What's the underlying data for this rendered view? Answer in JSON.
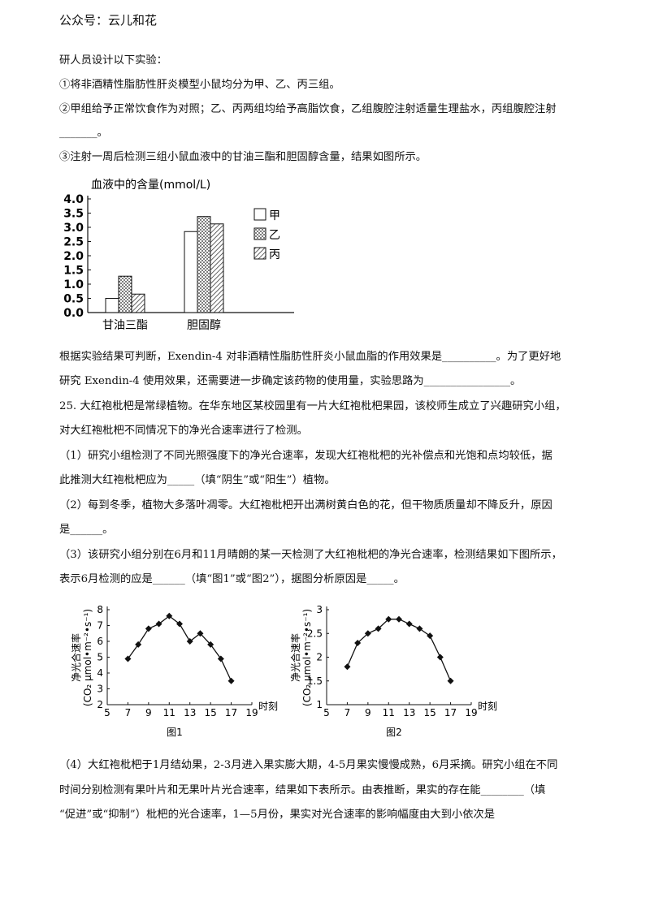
{
  "header": {
    "label": "公众号：云儿和花"
  },
  "lines": [
    "研人员设计以下实验：",
    "①将非酒精性脂肪性肝炎模型小鼠均分为甲、乙、丙三组。",
    "②甲组给予正常饮食作为对照；乙、丙两组均给予高脂饮食，乙组腹腔注射适量生理盐水，丙组腹腔注射",
    "_______。",
    "③注射一周后检测三组小鼠血液中的甘油三酯和胆固醇含量，结果如图所示。",
    "根据实验结果可判断，Exendin-4  对非酒精性脂肪性肝炎小鼠血脂的作用效果是__________。为了更好地",
    "研究  Exendin-4  使用效果，还需要进一步确定该药物的使用量，实验思路为________________。",
    "25. 大红袍枇杷是常绿植物。在华东地区某校园里有一片大红袍枇杷果园，该校师生成立了兴趣研究小组，",
    "对大红袍枇杷不同情况下的净光合速率进行了检测。",
    "（1）研究小组检测了不同光照强度下的净光合速率，发现大红袍枇杷的光补偿点和光饱和点均较低，据",
    "此推测大红袍枇杷应为_____（填“阴生”或“阳生”）植物。",
    "（2）每到冬季，植物大多落叶凋零。大红袍枇杷开出满树黄白色的花，但干物质质量却不降反升，原因",
    "是______。",
    "（3）该研究小组分别在6月和11月晴朗的某一天检测了大红袍枇杷的净光合速率，检测结果如下图所示，",
    "表示6月检测的应是______（填“图1”或“图2”），据图分析原因是_____。",
    "（4）大红袍枇杷于1月结幼果，2-3月进入果实膨大期，4-5月果实慢慢成熟，6月采摘。研究小组在不同",
    "时间分别检测有果叶片和无果叶片光合速率，结果如下表所示。由表推断，果实的存在能________（填",
    "“促进”或“抑制”）枇杷的光合速率，1—5月份，果实对光合速率的影响幅度由大到小依次是"
  ],
  "chart_data": [
    {
      "type": "bar",
      "ylabel": "血液中的含量(mmol/L)",
      "categories": [
        "甘油三酯",
        "胆固醇"
      ],
      "series": [
        {
          "name": "甲",
          "values": [
            0.5,
            2.85
          ]
        },
        {
          "name": "乙",
          "values": [
            1.28,
            3.38
          ]
        },
        {
          "name": "丙",
          "values": [
            0.65,
            3.12
          ]
        }
      ],
      "ylim": [
        0,
        4.0
      ],
      "yticks": [
        "0.0",
        "0.5",
        "1.0",
        "1.5",
        "2.0",
        "2.5",
        "3.0",
        "3.5",
        "4.0"
      ],
      "legend": "right",
      "grid": false
    },
    {
      "type": "line",
      "title": "图1",
      "ylabel": "净光合速率",
      "yunit": "(CO₂ μmol•m⁻²•s⁻¹)",
      "xlabel": "时刻",
      "x": [
        7,
        8,
        9,
        10,
        11,
        12,
        13,
        14,
        15,
        16,
        17
      ],
      "y": [
        4.9,
        5.8,
        6.8,
        7.1,
        7.6,
        7.1,
        6.0,
        6.5,
        5.8,
        4.9,
        3.5
      ],
      "xlim": [
        5,
        19
      ],
      "ylim": [
        2,
        8
      ],
      "xticks": [
        "5",
        "7",
        "9",
        "11",
        "13",
        "15",
        "17",
        "19"
      ],
      "yticks": [
        "2",
        "3",
        "4",
        "5",
        "6",
        "7",
        "8"
      ],
      "marker": "diamond"
    },
    {
      "type": "line",
      "title": "图2",
      "ylabel": "净光合速率",
      "yunit": "(CO₂ μmol•m⁻²•s⁻¹)",
      "xlabel": "时刻",
      "x": [
        7,
        8,
        9,
        10,
        11,
        12,
        13,
        14,
        15,
        16,
        17
      ],
      "y": [
        1.8,
        2.3,
        2.5,
        2.6,
        2.8,
        2.8,
        2.7,
        2.6,
        2.45,
        2.0,
        1.5
      ],
      "xlim": [
        5,
        19
      ],
      "ylim": [
        1,
        3
      ],
      "xticks": [
        "5",
        "7",
        "9",
        "11",
        "13",
        "15",
        "17",
        "19"
      ],
      "yticks": [
        "1",
        "1.5",
        "2",
        "2.5",
        "3"
      ],
      "marker": "diamond"
    }
  ]
}
